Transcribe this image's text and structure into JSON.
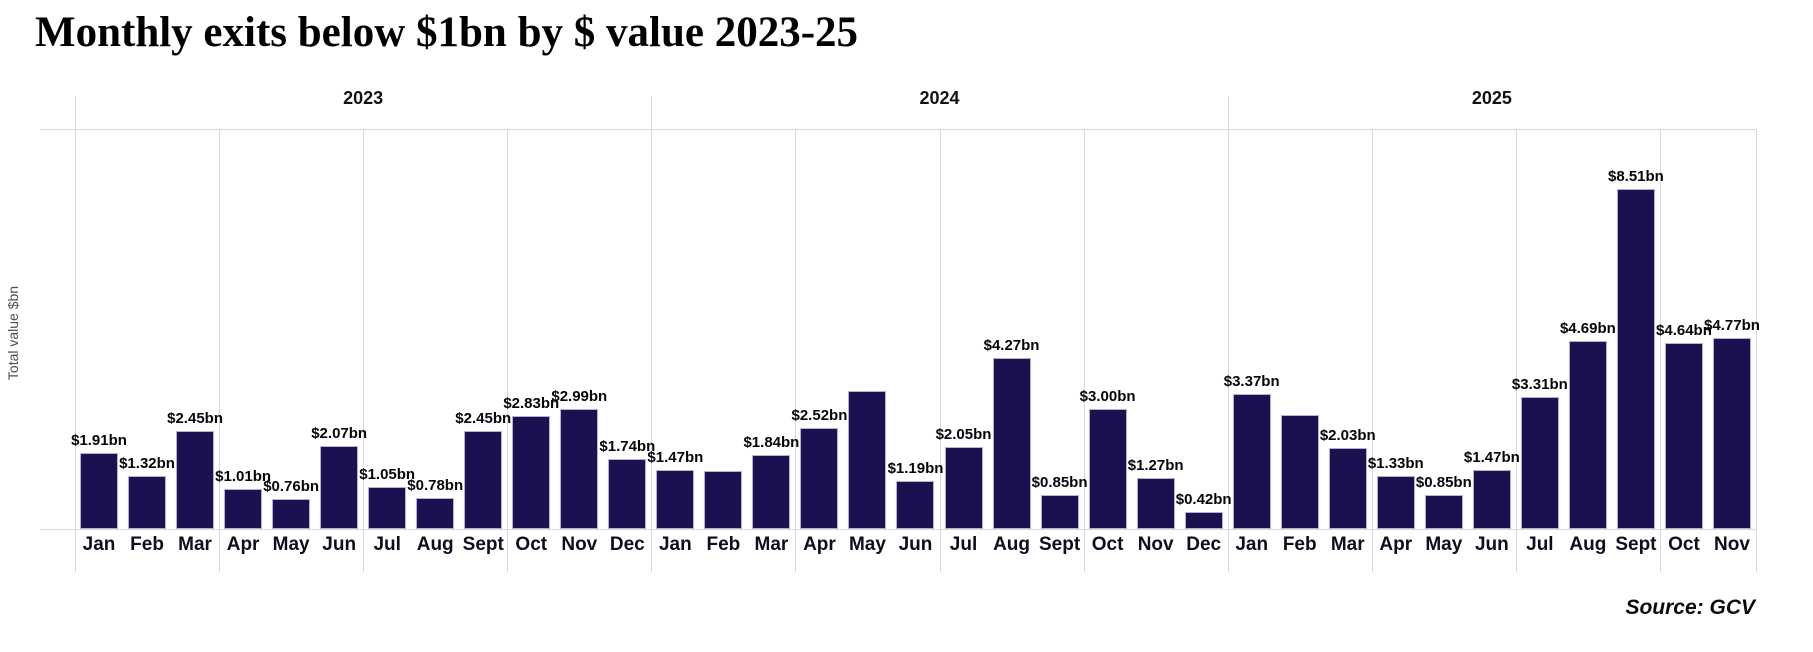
{
  "chart_data": {
    "type": "bar",
    "title": "Monthly exits below $1bn by $ value 2023-25",
    "ylabel": "Total value $bn",
    "source": "Source: GCV",
    "xlabel": "",
    "ylim": [
      0,
      10
    ],
    "grid": "vertical-quarter-separators",
    "legend": "none",
    "colors": {
      "bar_fill": "#1b1150",
      "bar_edge": "#b6b0d4",
      "gridline": "#d9d9d9",
      "label_text": "#05050a",
      "axis_text": "#4d4d4d"
    },
    "years": [
      {
        "label": "2023",
        "months": [
          "Jan",
          "Feb",
          "Mar",
          "Apr",
          "May",
          "Jun",
          "Jul",
          "Aug",
          "Sept",
          "Oct",
          "Nov",
          "Dec"
        ],
        "values": [
          1.91,
          1.32,
          2.45,
          1.01,
          0.76,
          2.07,
          1.05,
          0.78,
          2.45,
          2.83,
          2.99,
          1.74
        ],
        "labels": [
          "$1.91bn",
          "$1.32bn",
          "$2.45bn",
          "$1.01bn",
          "$0.76bn",
          "$2.07bn",
          "$1.05bn",
          "$0.78bn",
          "$2.45bn",
          "$2.83bn",
          "$2.99bn",
          "$1.74bn"
        ]
      },
      {
        "label": "2024",
        "months": [
          "Jan",
          "Feb",
          "Mar",
          "Apr",
          "May",
          "Jun",
          "Jul",
          "Aug",
          "Sept",
          "Oct",
          "Nov",
          "Dec"
        ],
        "values": [
          1.47,
          1.45,
          1.84,
          2.52,
          3.46,
          1.19,
          2.05,
          4.27,
          0.85,
          3.0,
          1.27,
          0.42
        ],
        "labels": [
          "$1.47bn",
          null,
          "$1.84bn",
          "$2.52bn",
          null,
          "$1.19bn",
          "$2.05bn",
          "$4.27bn",
          "$0.85bn",
          "$3.00bn",
          "$1.27bn",
          "$0.42bn"
        ]
      },
      {
        "label": "2025",
        "months": [
          "Jan",
          "Feb",
          "Mar",
          "Apr",
          "May",
          "Jun",
          "Jul",
          "Aug",
          "Sept",
          "Oct",
          "Nov"
        ],
        "values": [
          3.37,
          2.84,
          2.03,
          1.33,
          0.85,
          1.47,
          3.31,
          4.69,
          8.51,
          4.64,
          4.77
        ],
        "labels": [
          "$3.37bn",
          null,
          "$2.03bn",
          "$1.33bn",
          "$0.85bn",
          "$1.47bn",
          "$3.31bn",
          "$4.69bn",
          "$8.51bn",
          "$4.64bn",
          "$4.77bn"
        ]
      }
    ]
  }
}
